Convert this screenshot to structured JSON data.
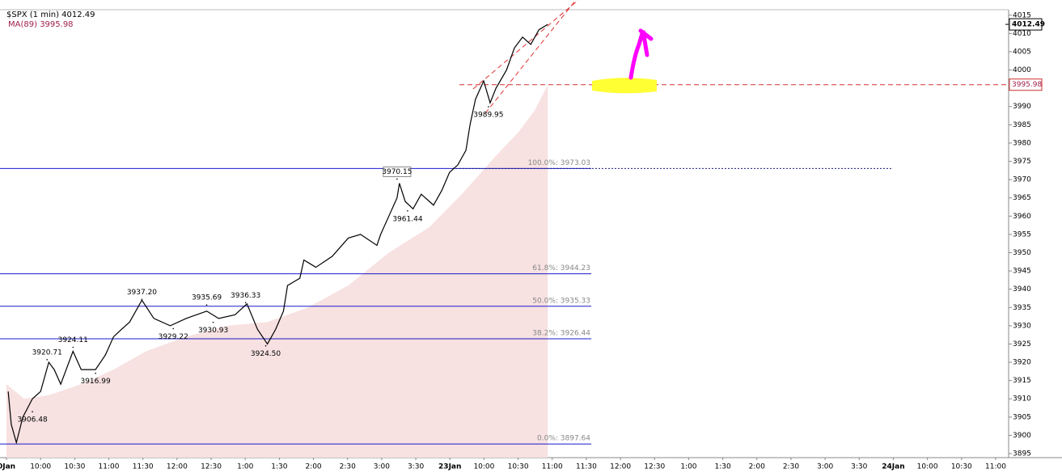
{
  "chart_data": {
    "type": "line",
    "title": "$SPX (1 min)",
    "last": 4012.49,
    "ma_label": "MA(89)",
    "ma_value": 3995.98,
    "xlim": [
      -0.19,
      29.38
    ],
    "ylim": [
      3893.9,
      4016.5
    ],
    "xticks": [
      {
        "value": 0,
        "label": "0Jan"
      },
      {
        "value": 1,
        "label": "10:00"
      },
      {
        "value": 2,
        "label": "10:30"
      },
      {
        "value": 3,
        "label": "11:00"
      },
      {
        "value": 4,
        "label": "11:30"
      },
      {
        "value": 5,
        "label": "12:00"
      },
      {
        "value": 6,
        "label": "12:30"
      },
      {
        "value": 7,
        "label": "1:00"
      },
      {
        "value": 8,
        "label": "1:30"
      },
      {
        "value": 9,
        "label": "2:00"
      },
      {
        "value": 10,
        "label": "2:30"
      },
      {
        "value": 11,
        "label": "3:00"
      },
      {
        "value": 12,
        "label": "3:30"
      },
      {
        "value": 13,
        "label": "23Jan"
      },
      {
        "value": 14,
        "label": "10:00"
      },
      {
        "value": 15,
        "label": "10:30"
      },
      {
        "value": 16,
        "label": "11:00"
      },
      {
        "value": 17,
        "label": "11:30"
      },
      {
        "value": 18,
        "label": "12:00"
      },
      {
        "value": 19,
        "label": "12:30"
      },
      {
        "value": 20,
        "label": "1:00"
      },
      {
        "value": 21,
        "label": "1:30"
      },
      {
        "value": 22,
        "label": "2:00"
      },
      {
        "value": 23,
        "label": "2:30"
      },
      {
        "value": 24,
        "label": "3:00"
      },
      {
        "value": 25,
        "label": "3:30"
      },
      {
        "value": 26,
        "label": "24Jan"
      },
      {
        "value": 27,
        "label": "10:00"
      },
      {
        "value": 28,
        "label": "10:30"
      },
      {
        "value": 29,
        "label": "11:00"
      }
    ],
    "yticks": [
      3895,
      3900,
      3905,
      3910,
      3915,
      3920,
      3925,
      3930,
      3935,
      3940,
      3945,
      3950,
      3955,
      3960,
      3965,
      3970,
      3975,
      3980,
      3985,
      3990,
      3995,
      4000,
      4005,
      4010,
      4015
    ],
    "price": {
      "color": "#000000",
      "x": [
        0.05,
        0.14,
        0.29,
        0.48,
        0.76,
        1.0,
        1.24,
        1.4,
        1.59,
        1.95,
        2.19,
        2.61,
        2.9,
        3.14,
        3.37,
        3.61,
        3.97,
        4.32,
        4.8,
        5.27,
        5.87,
        6.22,
        6.7,
        7.05,
        7.36,
        7.65,
        7.89,
        8.12,
        8.24,
        8.6,
        8.72,
        9.07,
        9.55,
        10.02,
        10.38,
        10.86,
        10.97,
        11.21,
        11.45,
        11.52,
        11.69,
        11.92,
        12.16,
        12.52,
        12.76,
        12.99,
        13.23,
        13.47,
        13.59,
        13.75,
        13.99,
        14.18,
        14.35,
        14.66,
        14.89,
        15.13,
        15.37,
        15.61,
        15.87
      ],
      "values": [
        3912,
        3903,
        3898,
        3905,
        3910,
        3912,
        3920,
        3918,
        3914,
        3923,
        3918,
        3918,
        3922,
        3927,
        3929,
        3931,
        3937,
        3932,
        3930,
        3932,
        3934,
        3932,
        3933,
        3936,
        3929,
        3925,
        3929,
        3934,
        3941,
        3943,
        3948,
        3946,
        3949,
        3954,
        3955,
        3952,
        3955,
        3960,
        3965,
        3969,
        3964,
        3962,
        3966,
        3963,
        3967,
        3972,
        3974,
        3978,
        3985,
        3992,
        3997,
        3991,
        3995,
        4000,
        4006,
        4009,
        4007,
        4011,
        4012.49
      ]
    },
    "ma": {
      "color": "#f7e1e1",
      "x": [
        0,
        0.52,
        1.24,
        2.19,
        3.14,
        4.09,
        5.27,
        6.46,
        7.65,
        8.84,
        10.02,
        11.21,
        12.4,
        13.35,
        14.3,
        15.01,
        15.49,
        15.87
      ],
      "values": [
        3914,
        3910,
        3911,
        3914,
        3918,
        3923,
        3927,
        3930,
        3931,
        3935,
        3941,
        3950,
        3957,
        3966,
        3976,
        3983,
        3989,
        3995.98
      ]
    },
    "annotations": [
      {
        "x": 0.76,
        "value": 3906.48
      },
      {
        "x": 1.19,
        "value": 3920.71
      },
      {
        "x": 1.95,
        "value": 3924.11
      },
      {
        "x": 2.61,
        "value": 3916.99
      },
      {
        "x": 3.97,
        "value": 3937.2,
        "label": "3937.20"
      },
      {
        "x": 4.89,
        "value": 3929.22
      },
      {
        "x": 5.87,
        "value": 3935.69
      },
      {
        "x": 6.06,
        "value": 3930.93
      },
      {
        "x": 7.01,
        "value": 3936.33
      },
      {
        "x": 7.6,
        "value": 3924.5,
        "label": "3924.50"
      },
      {
        "x": 11.45,
        "value": 3970.15
      },
      {
        "x": 11.76,
        "value": 3961.44
      },
      {
        "x": 14.13,
        "value": 3989.95
      }
    ],
    "fib_levels": [
      {
        "value": 3973.03,
        "label": "100.0%: 3973.03"
      },
      {
        "value": 3944.23,
        "label": "61.8%: 3944.23"
      },
      {
        "value": 3935.33,
        "label": "50.0%: 3935.33"
      },
      {
        "value": 3926.44,
        "label": "38.2%: 3926.44"
      },
      {
        "value": 3897.64,
        "label": "0.0%: 3897.64"
      }
    ]
  }
}
